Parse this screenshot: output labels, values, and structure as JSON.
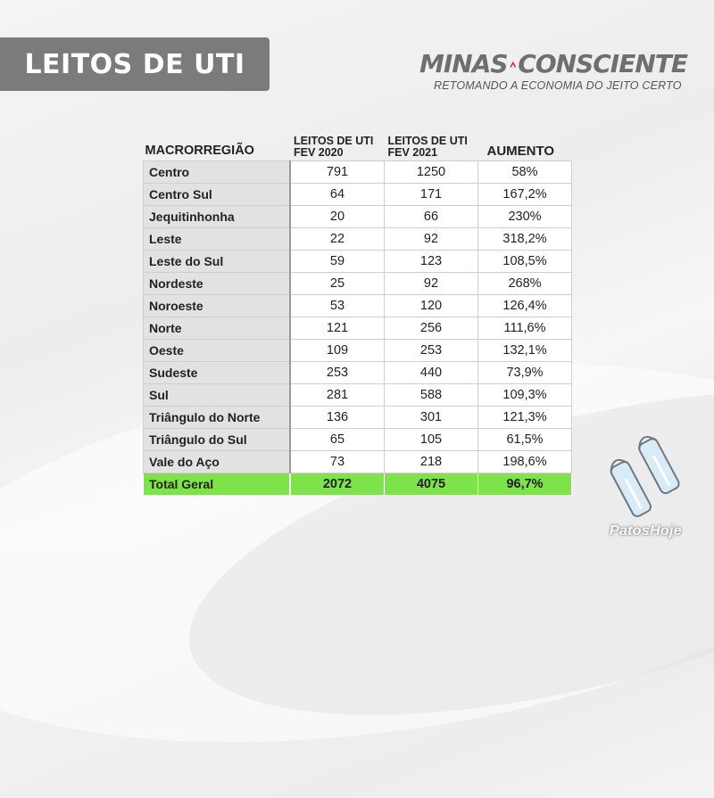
{
  "title": "LEITOS DE UTI",
  "logo": {
    "left_text": "MINAS",
    "right_text": "CONSCIENTE",
    "tagline": "RETOMANDO A ECONOMIA DO JEITO CERTO",
    "triangle_color": "#e8202a"
  },
  "table": {
    "headers": {
      "region": "MACRORREGIÃO",
      "col1_line1": "LEITOS DE UTI",
      "col1_line2": "FEV 2020",
      "col2_line1": "LEITOS DE UTI",
      "col2_line2": "FEV 2021",
      "col3": "AUMENTO"
    },
    "rows": [
      {
        "region": "Centro",
        "fev2020": "791",
        "fev2021": "1250",
        "aumento": "58%"
      },
      {
        "region": "Centro Sul",
        "fev2020": "64",
        "fev2021": "171",
        "aumento": "167,2%"
      },
      {
        "region": "Jequitinhonha",
        "fev2020": "20",
        "fev2021": "66",
        "aumento": "230%"
      },
      {
        "region": "Leste",
        "fev2020": "22",
        "fev2021": "92",
        "aumento": "318,2%"
      },
      {
        "region": "Leste do Sul",
        "fev2020": "59",
        "fev2021": "123",
        "aumento": "108,5%"
      },
      {
        "region": "Nordeste",
        "fev2020": "25",
        "fev2021": "92",
        "aumento": "268%"
      },
      {
        "region": "Noroeste",
        "fev2020": "53",
        "fev2021": "120",
        "aumento": "126,4%"
      },
      {
        "region": "Norte",
        "fev2020": "121",
        "fev2021": "256",
        "aumento": "111,6%"
      },
      {
        "region": "Oeste",
        "fev2020": "109",
        "fev2021": "253",
        "aumento": "132,1%"
      },
      {
        "region": "Sudeste",
        "fev2020": "253",
        "fev2021": "440",
        "aumento": "73,9%"
      },
      {
        "region": "Sul",
        "fev2020": "281",
        "fev2021": "588",
        "aumento": "109,3%"
      },
      {
        "region": "Triângulo do Norte",
        "fev2020": "136",
        "fev2021": "301",
        "aumento": "121,3%"
      },
      {
        "region": "Triângulo do Sul",
        "fev2020": "65",
        "fev2021": "105",
        "aumento": "61,5%"
      },
      {
        "region": "Vale do Aço",
        "fev2020": "73",
        "fev2021": "218",
        "aumento": "198,6%"
      }
    ],
    "total": {
      "region": "Total Geral",
      "fev2020": "2072",
      "fev2021": "4075",
      "aumento": "96,7%"
    },
    "total_color": "#7ee34b"
  },
  "watermark": "PatosHoje"
}
